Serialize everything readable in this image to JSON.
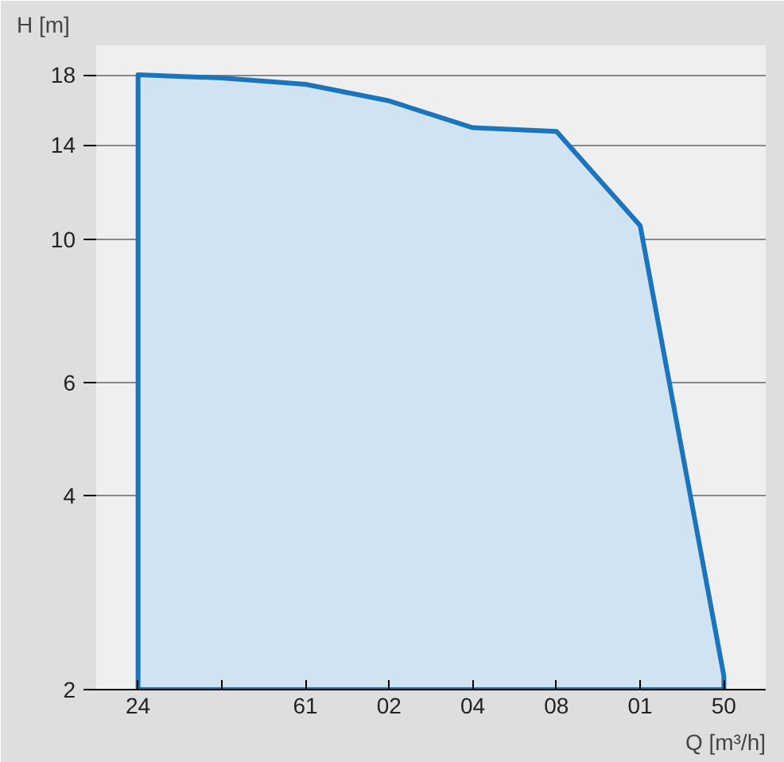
{
  "chart_data": {
    "type": "area",
    "xlabel": "Q [m³/h]",
    "ylabel": "H [m]",
    "categories": [
      "24",
      null,
      "61",
      "02",
      "04",
      "08",
      "01",
      "50"
    ],
    "series": [
      {
        "color": "#1a75bc",
        "values": [
          18,
          17.8,
          17.4,
          16.4,
          14.9,
          14.7,
          10.5,
          2.1
        ]
      }
    ],
    "ylim": [
      2,
      20
    ],
    "log": "y",
    "yticks": [
      2,
      4,
      6,
      10,
      14,
      18
    ],
    "grid": "y"
  }
}
